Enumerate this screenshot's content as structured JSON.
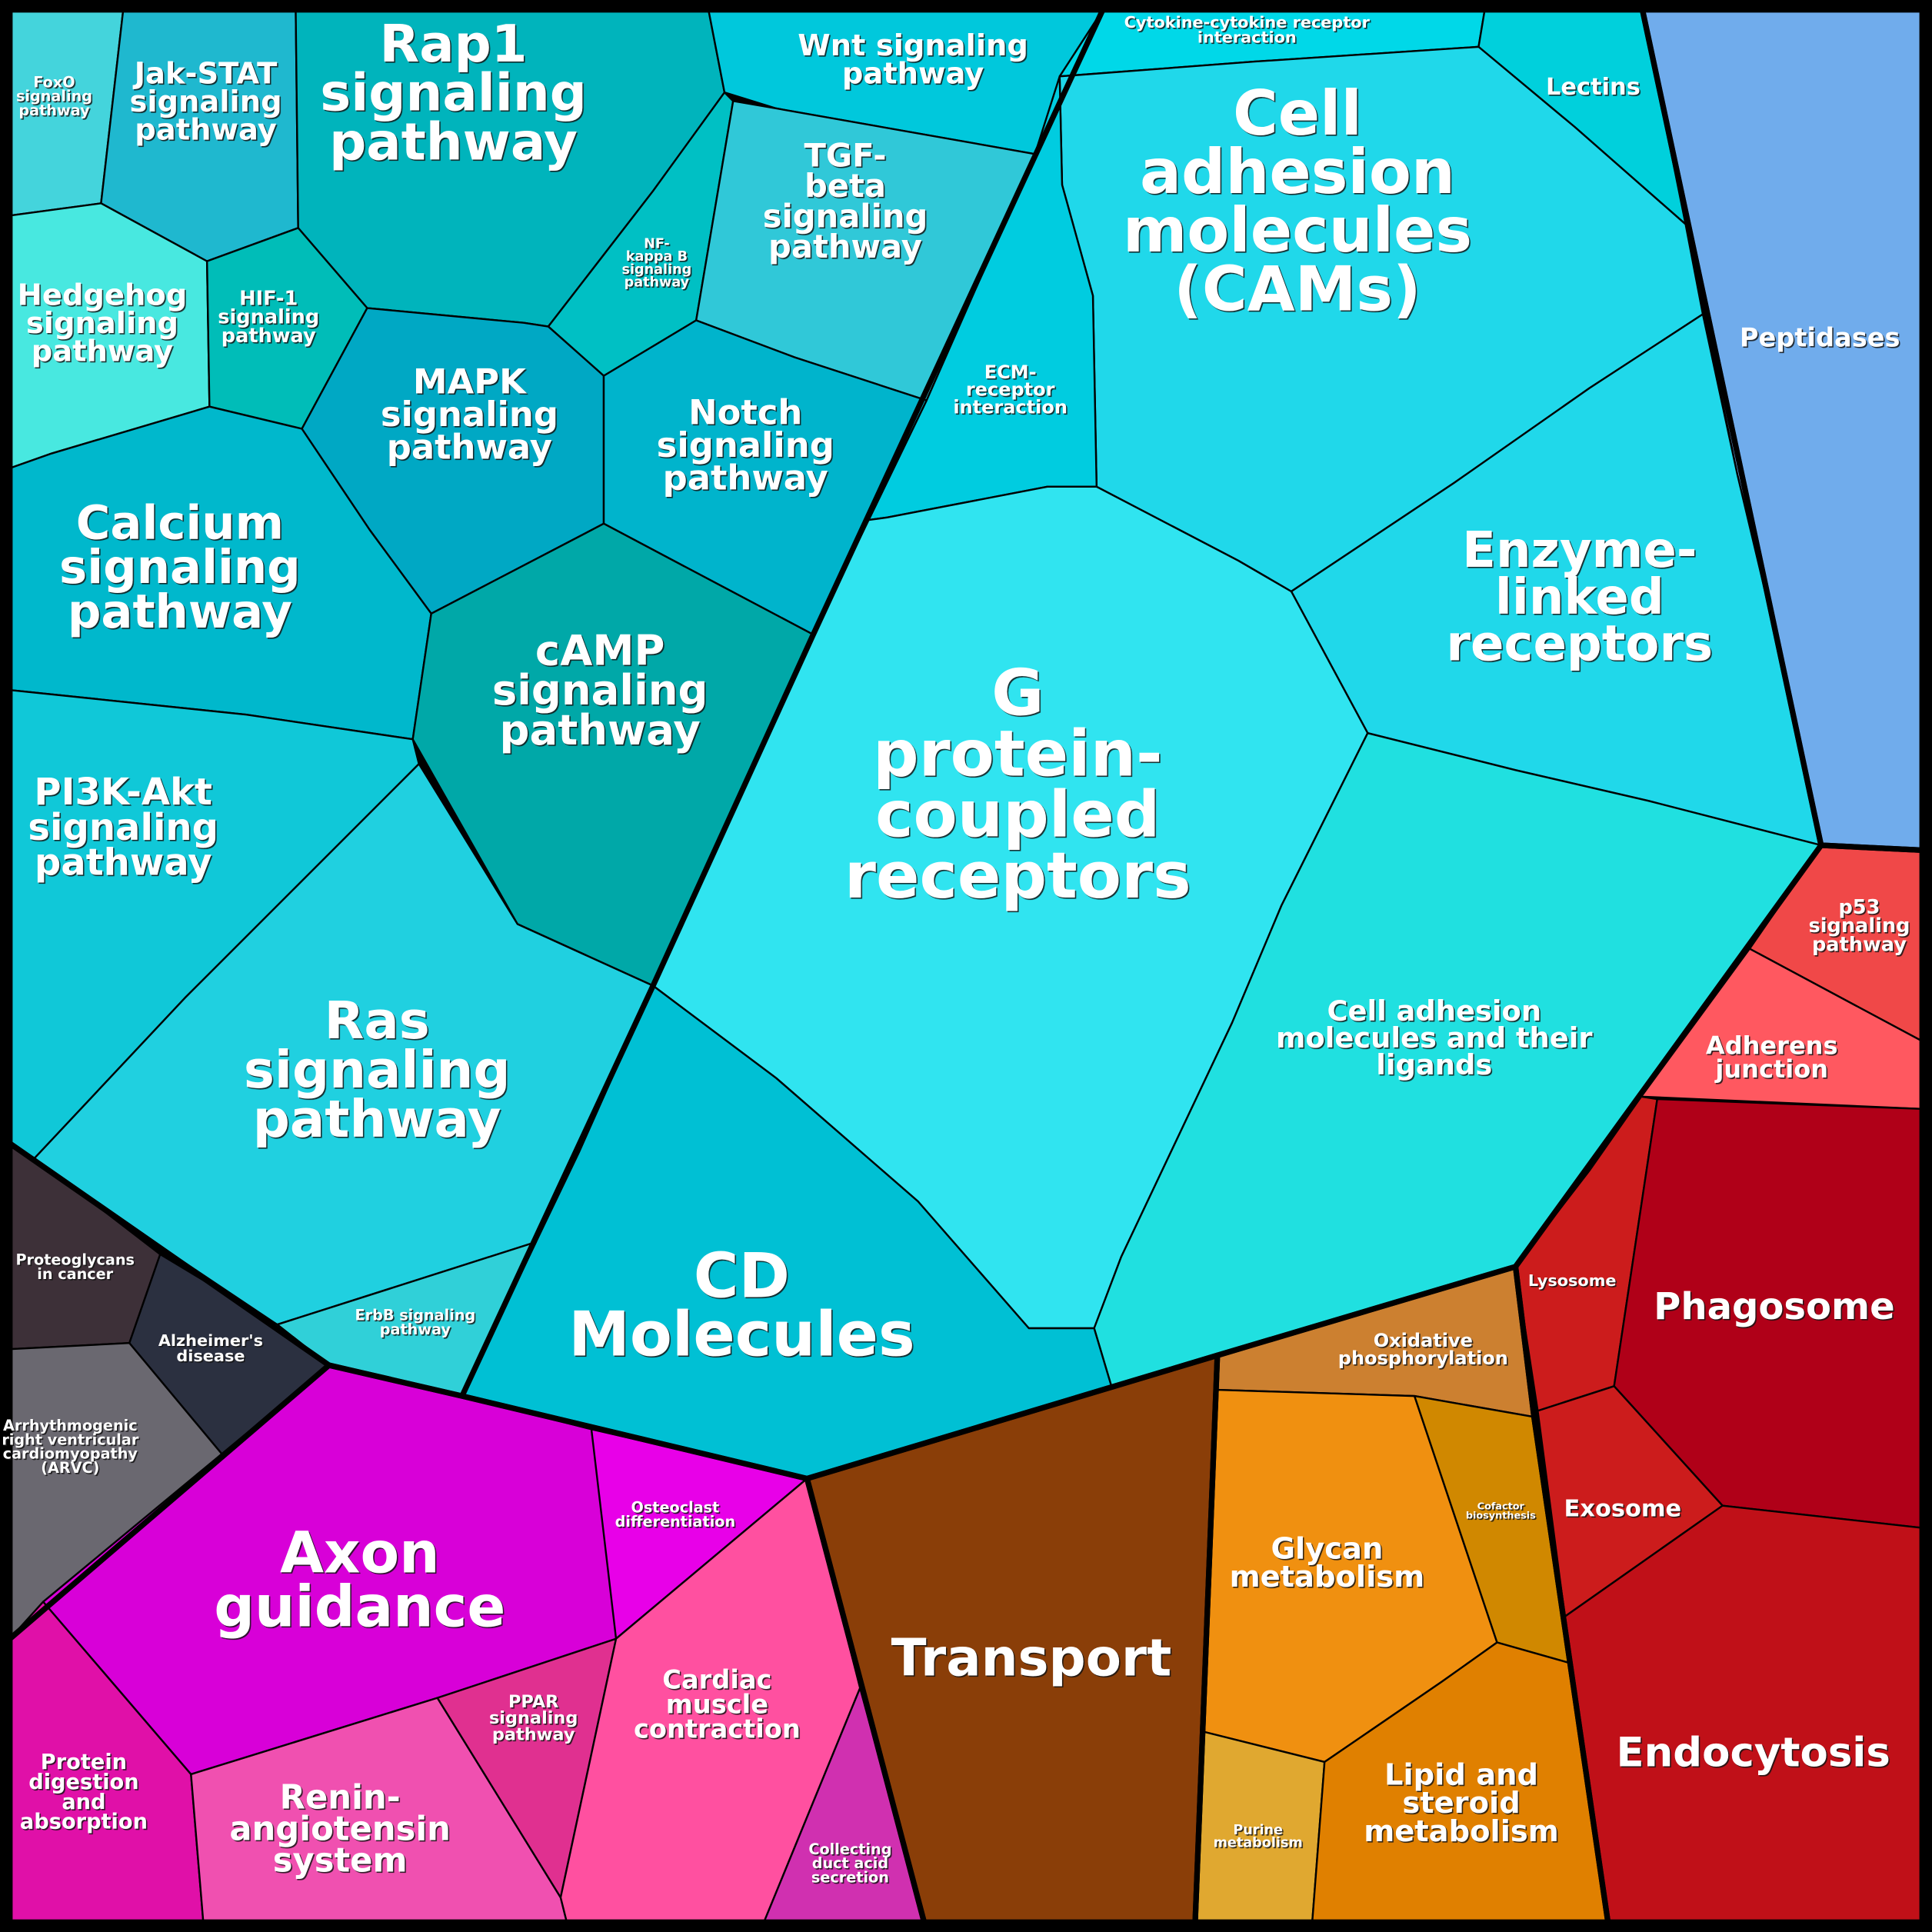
{
  "groups": {
    "signaling_and_receptors": {
      "color": "#20d0e0"
    },
    "peptidases": {
      "color": "#70acec"
    },
    "cellular_processes": {
      "color": "#c01018"
    },
    "metabolism": {
      "color": "#e08000"
    },
    "transport": {
      "color": "#8a3e08"
    },
    "development": {
      "color": "#d800d8"
    },
    "disease": {
      "color": "#4a4650"
    }
  },
  "cells": [
    {
      "lines": [
        "FoxO",
        "signaling",
        "pathway"
      ],
      "color": "#44d4dc"
    },
    {
      "lines": [
        "Jak-STAT",
        "signaling",
        "pathway"
      ],
      "color": "#1fb8cf"
    },
    {
      "lines": [
        "Rap1",
        "signaling",
        "pathway"
      ],
      "color": "#00b4bc"
    },
    {
      "lines": [
        "Wnt signaling",
        "pathway"
      ],
      "color": "#00c8dc"
    },
    {
      "lines": [
        "Cytokine-cytokine receptor",
        "interaction"
      ],
      "color": "#00d8e8"
    },
    {
      "lines": [
        "Lectins"
      ],
      "color": "#00d0dc"
    },
    {
      "lines": [
        "Cell",
        "adhesion",
        "molecules",
        "(CAMs)"
      ],
      "color": "#20d8ea"
    },
    {
      "lines": [
        "Hedgehog",
        "signaling",
        "pathway"
      ],
      "color": "#48e8e0"
    },
    {
      "lines": [
        "HIF-1",
        "signaling",
        "pathway"
      ],
      "color": "#00bdb8"
    },
    {
      "lines": [
        "NF-",
        "kappa B",
        "signaling",
        "pathway"
      ],
      "color": "#00c0c4"
    },
    {
      "lines": [
        "TGF-",
        "beta",
        "signaling",
        "pathway"
      ],
      "color": "#30c8d8"
    },
    {
      "lines": [
        "ECM-",
        "receptor",
        "interaction"
      ],
      "color": "#00cce0"
    },
    {
      "lines": [
        "MAPK",
        "signaling",
        "pathway"
      ],
      "color": "#00a8c4"
    },
    {
      "lines": [
        "Notch",
        "signaling",
        "pathway"
      ],
      "color": "#00b4cc"
    },
    {
      "lines": [
        "Calcium",
        "signaling",
        "pathway"
      ],
      "color": "#00b8cc"
    },
    {
      "lines": [
        "cAMP",
        "signaling",
        "pathway"
      ],
      "color": "#00a8a8"
    },
    {
      "lines": [
        "Peptidases"
      ],
      "color": "#70acec"
    },
    {
      "lines": [
        "Enzyme-",
        "linked",
        "receptors"
      ],
      "color": "#20d8ea"
    },
    {
      "lines": [
        "G",
        "protein-",
        "coupled",
        "receptors"
      ],
      "color": "#30e4f0"
    },
    {
      "lines": [
        "Cell adhesion",
        "molecules and their",
        "ligands"
      ],
      "color": "#20e0e0"
    },
    {
      "lines": [
        "PI3K-Akt",
        "signaling",
        "pathway"
      ],
      "color": "#10c8d8"
    },
    {
      "lines": [
        "Ras",
        "signaling",
        "pathway"
      ],
      "color": "#20d0e0"
    },
    {
      "lines": [
        "CD",
        "Molecules"
      ],
      "color": "#00c0d4"
    },
    {
      "lines": [
        "ErbB signaling",
        "pathway"
      ],
      "color": "#30d0d8"
    },
    {
      "lines": [
        "Proteoglycans",
        "in cancer"
      ],
      "color": "#3d3038"
    },
    {
      "lines": [
        "Alzheimer's",
        "disease"
      ],
      "color": "#2b3040"
    },
    {
      "lines": [
        "Arrhythmogenic",
        "right ventricular",
        "cardiomyopathy",
        "(ARVC)"
      ],
      "color": "#6a6870"
    },
    {
      "lines": [
        "Axon",
        "guidance"
      ],
      "color": "#d800d8"
    },
    {
      "lines": [
        "Osteoclast",
        "differentiation"
      ],
      "color": "#e800e8"
    },
    {
      "lines": [
        "Protein",
        "digestion",
        "and",
        "absorption"
      ],
      "color": "#e010a8"
    },
    {
      "lines": [
        "Renin-",
        "angiotensin",
        "system"
      ],
      "color": "#f050b0"
    },
    {
      "lines": [
        "PPAR",
        "signaling",
        "pathway"
      ],
      "color": "#e03090"
    },
    {
      "lines": [
        "Cardiac",
        "muscle",
        "contraction"
      ],
      "color": "#ff50a0"
    },
    {
      "lines": [
        "Collecting",
        "duct acid",
        "secretion"
      ],
      "color": "#d030b0"
    },
    {
      "lines": [
        "Transport"
      ],
      "color": "#8a3e08"
    },
    {
      "lines": [
        "Oxidative",
        "phosphorylation"
      ],
      "color": "#cc8030"
    },
    {
      "lines": [
        "Glycan",
        "metabolism"
      ],
      "color": "#f09010"
    },
    {
      "lines": [
        "Cofactor",
        "biosynthesis"
      ],
      "color": "#d08800"
    },
    {
      "lines": [
        "Purine",
        "metabolism"
      ],
      "color": "#e0a830"
    },
    {
      "lines": [
        "Lipid and",
        "steroid",
        "metabolism"
      ],
      "color": "#e08000"
    },
    {
      "lines": [
        "p53",
        "signaling",
        "pathway"
      ],
      "color": "#f04848"
    },
    {
      "lines": [
        "Adherens",
        "junction"
      ],
      "color": "#ff5860"
    },
    {
      "lines": [
        "Lysosome"
      ],
      "color": "#cc1c1c"
    },
    {
      "lines": [
        "Phagosome"
      ],
      "color": "#b00018"
    },
    {
      "lines": [
        "Exosome"
      ],
      "color": "#cc1c1c"
    },
    {
      "lines": [
        "Endocytosis"
      ],
      "color": "#c01018"
    }
  ]
}
